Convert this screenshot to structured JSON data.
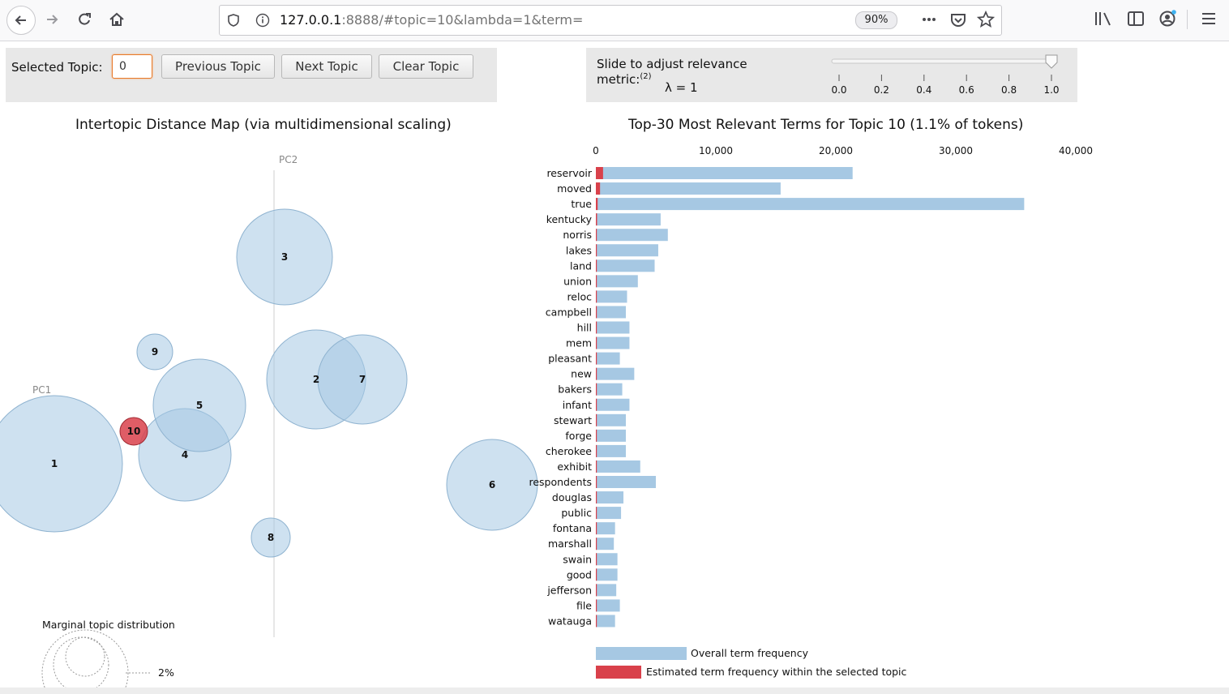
{
  "browser": {
    "url_host": "127.0.0.1",
    "url_rest": ":8888/#topic=10&lambda=1&term=",
    "zoom": "90%",
    "icons": [
      "back-arrow-icon",
      "forward-arrow-icon",
      "reload-icon",
      "home-icon",
      "shield-icon",
      "info-icon",
      "more-icon",
      "pocket-icon",
      "star-icon",
      "library-icon",
      "sidebar-icon",
      "account-icon",
      "menu-icon"
    ]
  },
  "controls": {
    "selected_topic_label": "Selected Topic:",
    "selected_topic_value": "0",
    "previous_label": "Previous Topic",
    "next_label": "Next Topic",
    "clear_label": "Clear Topic",
    "slider_label_line1": "Slide to adjust relevance",
    "slider_label_line2": "metric:",
    "slider_footnote": "(2)",
    "lambda_text": "λ = 1",
    "slider_value": 1.0,
    "slider_ticks": [
      "0.0",
      "0.2",
      "0.4",
      "0.6",
      "0.8",
      "1.0"
    ]
  },
  "map": {
    "title": "Intertopic Distance Map (via multidimensional scaling)",
    "pc1_label": "PC1",
    "pc2_label": "PC2",
    "marginal_title": "Marginal topic distribution",
    "marginal_label": "2%",
    "selected_topic": 10,
    "colors": {
      "topic_fill": "#a6c8e3",
      "selected_fill": "#d9414b"
    },
    "topics": [
      {
        "id": "1",
        "label": "1"
      },
      {
        "id": "2",
        "label": "2"
      },
      {
        "id": "3",
        "label": "3"
      },
      {
        "id": "4",
        "label": "4"
      },
      {
        "id": "5",
        "label": "5"
      },
      {
        "id": "6",
        "label": "6"
      },
      {
        "id": "7",
        "label": "7"
      },
      {
        "id": "8",
        "label": "8"
      },
      {
        "id": "9",
        "label": "9"
      },
      {
        "id": "10",
        "label": "10"
      }
    ]
  },
  "chart_data": {
    "type": "bar",
    "title": "Top-30 Most Relevant Terms for Topic 10 (1.1% of tokens)",
    "xlim": [
      0,
      40000
    ],
    "x_ticks": [
      0,
      10000,
      20000,
      30000,
      40000
    ],
    "x_tick_labels": [
      "0",
      "10,000",
      "20,000",
      "30,000",
      "40,000"
    ],
    "categories": [
      "reservoir",
      "moved",
      "true",
      "kentucky",
      "norris",
      "lakes",
      "land",
      "union",
      "reloc",
      "campbell",
      "hill",
      "mem",
      "pleasant",
      "new",
      "bakers",
      "infant",
      "stewart",
      "forge",
      "cherokee",
      "exhibit",
      "respondents",
      "douglas",
      "public",
      "fontana",
      "marshall",
      "swain",
      "good",
      "jefferson",
      "file",
      "watauga"
    ],
    "series": [
      {
        "name": "Overall term frequency",
        "color": "#a6c8e3",
        "values": [
          21400,
          15400,
          35700,
          5400,
          6000,
          5200,
          4900,
          3500,
          2600,
          2500,
          2800,
          2800,
          2000,
          3200,
          2200,
          2800,
          2500,
          2500,
          2500,
          3700,
          5000,
          2300,
          2100,
          1600,
          1500,
          1800,
          1800,
          1700,
          2000,
          1600
        ]
      },
      {
        "name": "Estimated term frequency within the selected topic",
        "color": "#d9414b",
        "values": [
          600,
          350,
          150,
          100,
          80,
          70,
          60,
          40,
          30,
          30,
          30,
          30,
          20,
          30,
          20,
          20,
          20,
          20,
          20,
          30,
          40,
          20,
          20,
          10,
          10,
          10,
          10,
          10,
          10,
          10
        ]
      }
    ],
    "legend": [
      "Overall term frequency",
      "Estimated term frequency within the selected topic"
    ]
  }
}
